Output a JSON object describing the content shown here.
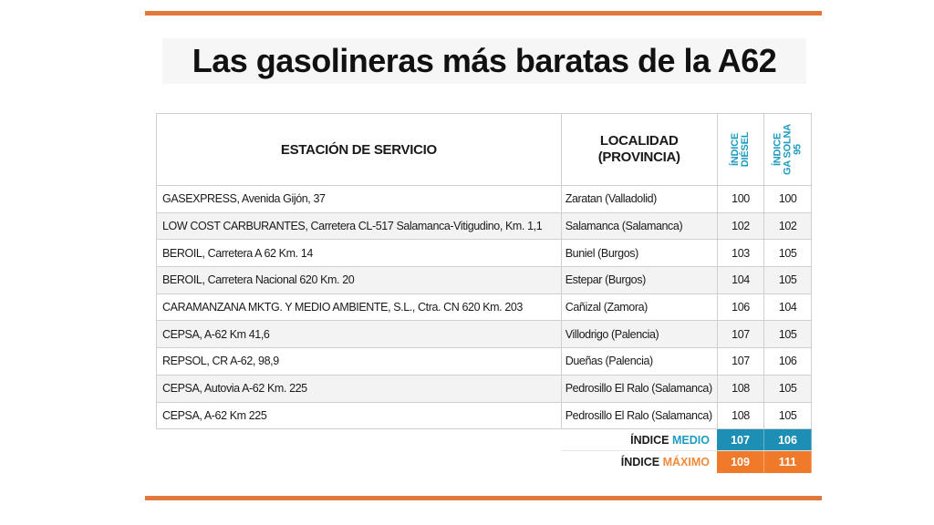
{
  "title": "Las gasolineras más baratas de la A62",
  "colors": {
    "rule": "#e2773a",
    "accent_blue": "#1d8fb4",
    "accent_orange": "#f07a2a"
  },
  "table": {
    "headers": {
      "station": "ESTACIÓN DE SERVICIO",
      "locality_line1": "LOCALIDAD",
      "locality_line2": "(PROVINCIA)",
      "diesel_line1": "ÍNDICE",
      "diesel_line2": "DIÉSEL",
      "gasolina_line1": "ÍNDICE",
      "gasolina_line2": "GA SOLNA",
      "gasolina_line3": "95"
    },
    "rows": [
      {
        "station": "GASEXPRESS, Avenida Gijón, 37",
        "locality": "Zaratan (Valladolid)",
        "diesel": "100",
        "gasolina": "100"
      },
      {
        "station": "LOW COST CARBURANTES, Carretera CL-517 Salamanca-Vitigudino, Km. 1,1",
        "locality": "Salamanca (Salamanca)",
        "diesel": "102",
        "gasolina": "102"
      },
      {
        "station": "BEROIL, Carretera A 62 Km. 14",
        "locality": "Buniel (Burgos)",
        "diesel": "103",
        "gasolina": "105"
      },
      {
        "station": "BEROIL, Carretera Nacional 620 Km. 20",
        "locality": "Estepar (Burgos)",
        "diesel": "104",
        "gasolina": "105"
      },
      {
        "station": "CARAMANZANA MKTG. Y MEDIO AMBIENTE, S.L., Ctra. CN 620 Km. 203",
        "locality": "Cañizal (Zamora)",
        "diesel": "106",
        "gasolina": "104"
      },
      {
        "station": "CEPSA, A-62 Km 41,6",
        "locality": "Villodrigo (Palencia)",
        "diesel": "107",
        "gasolina": "105"
      },
      {
        "station": "REPSOL, CR A-62, 98,9",
        "locality": "Dueñas (Palencia)",
        "diesel": "107",
        "gasolina": "106"
      },
      {
        "station": "CEPSA, Autovia A-62 Km. 225",
        "locality": "Pedrosillo El Ralo (Salamanca)",
        "diesel": "108",
        "gasolina": "105"
      },
      {
        "station": "CEPSA, A-62 Km 225",
        "locality": "Pedrosillo El Ralo (Salamanca)",
        "diesel": "108",
        "gasolina": "105"
      }
    ]
  },
  "summary": {
    "medio": {
      "label_prefix": "ÍNDICE",
      "label_suffix": "MEDIO",
      "diesel": "107",
      "gasolina": "106"
    },
    "maximo": {
      "label_prefix": "ÍNDICE",
      "label_suffix": "MÁXIMO",
      "diesel": "109",
      "gasolina": "111"
    }
  }
}
